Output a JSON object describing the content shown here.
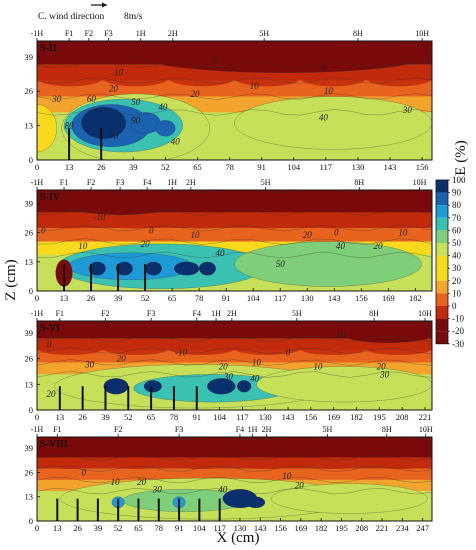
{
  "figure": {
    "header": "C.  wind direction",
    "wind_speed": "8m/s",
    "x_axis_label": "X (cm)",
    "y_axis_label": "Z (cm)",
    "colorbar_label": "E (%)"
  },
  "colors": {
    "scale": [
      "#7a0a0a",
      "#c22a0c",
      "#e8641e",
      "#f2a42d",
      "#f8da1c",
      "#c6e05a",
      "#7fcf7a",
      "#3ac1b2",
      "#1e9ad7",
      "#1b62b0",
      "#0a2f6d"
    ],
    "wind_arrow": "#111111"
  },
  "chart_data": {
    "type": "heatmap",
    "colorbar": {
      "label": "E (%)",
      "ticks": [
        100,
        90,
        80,
        70,
        60,
        50,
        40,
        30,
        20,
        10,
        0,
        -10,
        -20,
        -30
      ],
      "range": [
        -30,
        100
      ]
    },
    "panels": [
      {
        "label": "S-II",
        "xlim": [
          0,
          160
        ],
        "ylim": [
          0,
          45
        ],
        "x_ticks": [
          0,
          13,
          26,
          39,
          52,
          65,
          78,
          91,
          104,
          117,
          130,
          143,
          156
        ],
        "y_ticks": [
          0,
          13,
          26,
          39
        ],
        "markers": [
          {
            "text": "-1H",
            "x": 0
          },
          {
            "text": "F1",
            "x": 13
          },
          {
            "text": "F2",
            "x": 21
          },
          {
            "text": "F3",
            "x": 29
          },
          {
            "text": "1H",
            "x": 42
          },
          {
            "text": "2H",
            "x": 55
          },
          {
            "text": "5H",
            "x": 92
          },
          {
            "text": "8H",
            "x": 130
          },
          {
            "text": "10H",
            "x": 156
          }
        ],
        "fences": [
          13,
          26
        ],
        "contour_labels": [
          {
            "text": "0",
            "x": 72,
            "y": 38
          },
          {
            "text": "0",
            "x": 116,
            "y": 35
          },
          {
            "text": "10",
            "x": 33,
            "y": 33
          },
          {
            "text": "10",
            "x": 88,
            "y": 28
          },
          {
            "text": "10",
            "x": 118,
            "y": 26
          },
          {
            "text": "20",
            "x": 31,
            "y": 27
          },
          {
            "text": "20",
            "x": 64,
            "y": 25
          },
          {
            "text": "30",
            "x": 8,
            "y": 23
          },
          {
            "text": "30",
            "x": 150,
            "y": 19
          },
          {
            "text": "60",
            "x": 22,
            "y": 23
          },
          {
            "text": "50",
            "x": 40,
            "y": 22
          },
          {
            "text": "40",
            "x": 51,
            "y": 20
          },
          {
            "text": "40",
            "x": 116,
            "y": 16
          },
          {
            "text": "90",
            "x": 40,
            "y": 15
          },
          {
            "text": "80",
            "x": 13,
            "y": 13
          },
          {
            "text": "70",
            "x": 31,
            "y": 9
          },
          {
            "text": "40",
            "x": 56,
            "y": 7
          }
        ]
      },
      {
        "label": "S-IV",
        "xlim": [
          0,
          190
        ],
        "ylim": [
          0,
          45
        ],
        "x_ticks": [
          0,
          13,
          26,
          39,
          52,
          65,
          78,
          91,
          104,
          117,
          130,
          143,
          156,
          169,
          182
        ],
        "y_ticks": [
          0,
          13,
          26,
          39
        ],
        "markers": [
          {
            "text": "-1H",
            "x": 0
          },
          {
            "text": "F1",
            "x": 13
          },
          {
            "text": "F2",
            "x": 26
          },
          {
            "text": "F3",
            "x": 40
          },
          {
            "text": "F4",
            "x": 53
          },
          {
            "text": "1H",
            "x": 65
          },
          {
            "text": "2H",
            "x": 74
          },
          {
            "text": "5H",
            "x": 110
          },
          {
            "text": "8H",
            "x": 155
          },
          {
            "text": "10H",
            "x": 184
          }
        ],
        "fences": [
          13,
          26,
          39,
          52
        ],
        "contour_labels": [
          {
            "text": "-10",
            "x": 30,
            "y": 33
          },
          {
            "text": "0",
            "x": 3,
            "y": 27
          },
          {
            "text": "0",
            "x": 55,
            "y": 27
          },
          {
            "text": "0",
            "x": 144,
            "y": 26
          },
          {
            "text": "10",
            "x": 76,
            "y": 25
          },
          {
            "text": "10",
            "x": 176,
            "y": 26
          },
          {
            "text": "20",
            "x": 130,
            "y": 25
          },
          {
            "text": "10",
            "x": 22,
            "y": 20
          },
          {
            "text": "20",
            "x": 52,
            "y": 21
          },
          {
            "text": "20",
            "x": 164,
            "y": 20
          },
          {
            "text": "40",
            "x": 88,
            "y": 17
          },
          {
            "text": "40",
            "x": 146,
            "y": 20
          },
          {
            "text": "50",
            "x": 117,
            "y": 12
          }
        ]
      },
      {
        "label": "S-VI",
        "xlim": [
          0,
          225
        ],
        "ylim": [
          0,
          45
        ],
        "x_ticks": [
          0,
          13,
          26,
          39,
          52,
          65,
          78,
          91,
          104,
          117,
          130,
          143,
          156,
          169,
          182,
          195,
          208,
          221
        ],
        "y_ticks": [
          0,
          13,
          26,
          39
        ],
        "markers": [
          {
            "text": "-1H",
            "x": 0
          },
          {
            "text": "F1",
            "x": 13
          },
          {
            "text": "F2",
            "x": 39
          },
          {
            "text": "F3",
            "x": 65
          },
          {
            "text": "F4",
            "x": 91
          },
          {
            "text": "1H",
            "x": 102
          },
          {
            "text": "2H",
            "x": 111
          },
          {
            "text": "5H",
            "x": 148
          },
          {
            "text": "8H",
            "x": 192
          },
          {
            "text": "10H",
            "x": 221
          }
        ],
        "fences": [
          13,
          26,
          39,
          52,
          65,
          78,
          91
        ],
        "contour_labels": [
          {
            "text": "0",
            "x": 7,
            "y": 33
          },
          {
            "text": "-10",
            "x": 82,
            "y": 29
          },
          {
            "text": "0",
            "x": 143,
            "y": 29
          },
          {
            "text": "10",
            "x": 173,
            "y": 38
          },
          {
            "text": "10",
            "x": 125,
            "y": 24
          },
          {
            "text": "10",
            "x": 160,
            "y": 22
          },
          {
            "text": "20",
            "x": 48,
            "y": 26
          },
          {
            "text": "20",
            "x": 106,
            "y": 22
          },
          {
            "text": "20",
            "x": 196,
            "y": 22
          },
          {
            "text": "30",
            "x": 30,
            "y": 23
          },
          {
            "text": "30",
            "x": 109,
            "y": 17
          },
          {
            "text": "40",
            "x": 124,
            "y": 16
          },
          {
            "text": "30",
            "x": 198,
            "y": 18
          },
          {
            "text": "20",
            "x": 8,
            "y": 8
          }
        ]
      },
      {
        "label": "S-VIII",
        "xlim": [
          0,
          253
        ],
        "ylim": [
          0,
          45
        ],
        "x_ticks": [
          0,
          13,
          26,
          39,
          52,
          65,
          78,
          91,
          104,
          117,
          130,
          143,
          156,
          169,
          182,
          195,
          208,
          221,
          234,
          247
        ],
        "y_ticks": [
          0,
          13,
          26,
          39
        ],
        "markers": [
          {
            "text": "-1H",
            "x": 0
          },
          {
            "text": "F1",
            "x": 13
          },
          {
            "text": "F2",
            "x": 52
          },
          {
            "text": "F3",
            "x": 91
          },
          {
            "text": "F4",
            "x": 130
          },
          {
            "text": "1H",
            "x": 138
          },
          {
            "text": "2H",
            "x": 147
          },
          {
            "text": "5H",
            "x": 186
          },
          {
            "text": "8H",
            "x": 224
          },
          {
            "text": "10H",
            "x": 249
          }
        ],
        "fences": [
          13,
          26,
          39,
          52,
          65,
          78,
          91,
          104,
          117
        ],
        "contour_labels": [
          {
            "text": "0",
            "x": 30,
            "y": 26
          },
          {
            "text": "10",
            "x": 50,
            "y": 21
          },
          {
            "text": "20",
            "x": 67,
            "y": 21
          },
          {
            "text": "30",
            "x": 77,
            "y": 17
          },
          {
            "text": "10",
            "x": 160,
            "y": 24
          },
          {
            "text": "20",
            "x": 168,
            "y": 19
          },
          {
            "text": "40",
            "x": 119,
            "y": 17
          }
        ]
      }
    ]
  }
}
